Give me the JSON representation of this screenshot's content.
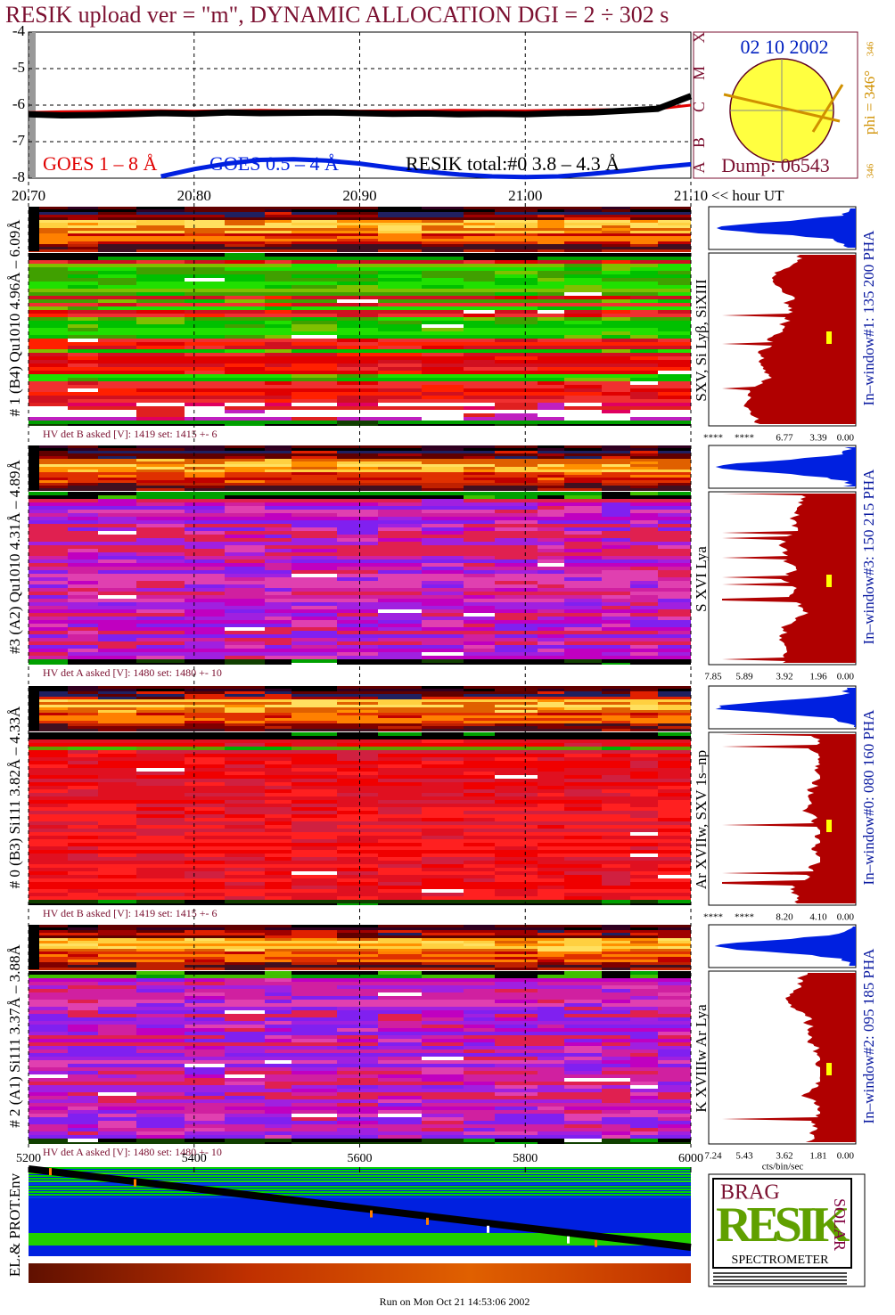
{
  "header": {
    "title": "RESIK upload ver = \"m\", DYNAMIC ALLOCATION  DGI =   2 ÷ 302 s"
  },
  "chart_data": [
    {
      "type": "line",
      "xlabel": "<< hour UT",
      "xlim": [
        20.7,
        21.1
      ],
      "xticks": [
        {
          "value": 20.7,
          "label": "20.70"
        },
        {
          "value": 20.8,
          "label": "20.80"
        },
        {
          "value": 20.9,
          "label": "20.90"
        },
        {
          "value": 21.0,
          "label": "21.00"
        },
        {
          "value": 21.1,
          "label": "21.10"
        }
      ],
      "ylim": [
        -8,
        -4
      ],
      "yticks": [
        -4,
        -5,
        -6,
        -7,
        -8
      ],
      "grid": true,
      "x": [
        20.7,
        20.72,
        20.74,
        20.76,
        20.78,
        20.8,
        20.82,
        20.84,
        20.86,
        20.88,
        20.9,
        20.92,
        20.94,
        20.96,
        20.98,
        21.0,
        21.02,
        21.04,
        21.06,
        21.08,
        21.1
      ],
      "series": [
        {
          "name": "GOES 1 – 8 Å",
          "color": "#e00000",
          "values": [
            -6.2,
            -6.18,
            -6.17,
            -6.15,
            -6.15,
            -6.16,
            -6.15,
            -6.14,
            -6.15,
            -6.15,
            -6.16,
            -6.15,
            -6.15,
            -6.14,
            -6.15,
            -6.15,
            -6.14,
            -6.13,
            -6.12,
            -6.1,
            -6.0
          ]
        },
        {
          "name": "GOES 0.5 – 4 Å",
          "color": "#0020e0",
          "values": [
            null,
            null,
            null,
            null,
            -7.95,
            -7.75,
            -7.6,
            -7.5,
            -7.48,
            -7.52,
            -7.6,
            -7.72,
            -7.82,
            -7.9,
            -7.95,
            -7.97,
            -7.95,
            -7.88,
            -7.8,
            -7.7,
            -7.62
          ]
        },
        {
          "name": "RESIK total:#0  3.8 – 4.3 Å",
          "color": "#000000",
          "values": [
            -6.25,
            -6.28,
            -6.27,
            -6.25,
            -6.22,
            -6.24,
            -6.2,
            -6.22,
            -6.21,
            -6.2,
            -6.22,
            -6.24,
            -6.23,
            -6.25,
            -6.24,
            -6.25,
            -6.22,
            -6.2,
            -6.15,
            -6.1,
            -5.75
          ]
        }
      ]
    },
    {
      "type": "image",
      "title": "EL.& PROT.Env",
      "xlim": [
        5200,
        6000
      ],
      "xticks": [
        5200,
        5400,
        5600,
        5800,
        6000
      ]
    }
  ],
  "sun_box": {
    "date": "02 10 2002",
    "dump": "Dump: 06543",
    "phi": "phi = 346°",
    "phi_top": "346",
    "phi_bottom": "346",
    "classes": [
      "A",
      "B",
      "C",
      "M",
      "X"
    ]
  },
  "panels": [
    {
      "label": "# 1 (B4) Qu1010 4.96Å – 6.09Å",
      "lines": "SXV, Si Lyβ, SiXIII",
      "window": "In–window#1:  135 200 PHA",
      "hv": "HV det B asked [V]:  1419 set:  1415 +-    6",
      "hist_labels": [
        "****",
        "****",
        "6.77",
        "3.39",
        "0.00"
      ]
    },
    {
      "label": "#3 (A2) Qu1010  4.31Å – 4.89Å",
      "lines": "S XVI Lya",
      "window": "In–window#3:  150 215 PHA",
      "hv": "HV det A asked [V]:  1480 set:  1480 +-    10",
      "hist_labels": [
        "7.85",
        "5.89",
        "3.92",
        "1.96",
        "0.00"
      ]
    },
    {
      "label": "# 0 (B3) Si111  3.82Å – 4.33Å",
      "lines": "Ar XVIIw,  SXV 1s–np",
      "window": "In–window#0:  080 160 PHA",
      "hv": "HV det B asked [V]:  1419 set:  1415 +-    6",
      "hist_labels": [
        "****",
        "****",
        "8.20",
        "4.10",
        "0.00"
      ]
    },
    {
      "label": "# 2 (A1) Si111  3.37Å – 3.88Å",
      "lines": "K XVIIIw  Ar Lya",
      "window": "In–window#2:  095 185 PHA",
      "hv": "HV det A asked [V]:  1480 set:  1480 +-    10",
      "hist_labels": [
        "7.24",
        "5.43",
        "3.62",
        "1.81",
        "0.00"
      ]
    }
  ],
  "hist_unit": "cts/bin/sec",
  "logo": {
    "top": "BRAG",
    "middle": "RESIK",
    "right": "SOLAR",
    "bottom": "SPECTROMETER"
  },
  "footer": "Run on Mon Oct 21 14:53:06 2002"
}
